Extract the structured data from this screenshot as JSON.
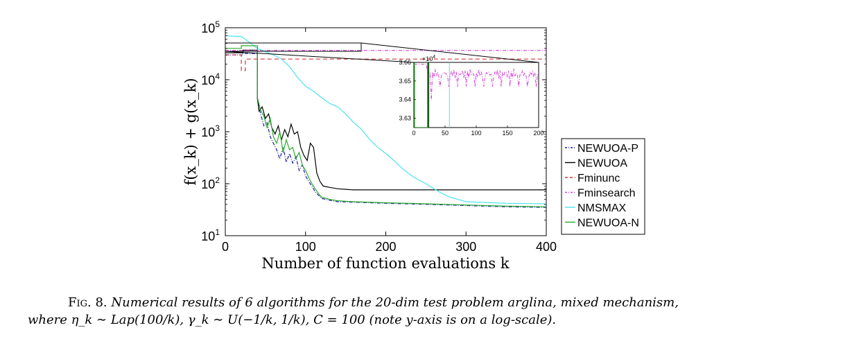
{
  "chart_data": {
    "type": "line",
    "xlabel": "Number of function evaluations k",
    "ylabel": "f(x_k) + g(x_k)",
    "y_scale": "log",
    "xlim": [
      0,
      400
    ],
    "ylim": [
      10,
      100000
    ],
    "x_ticks": [
      "0",
      "100",
      "200",
      "300",
      "400"
    ],
    "y_tick_values": [
      10,
      100,
      1000,
      10000,
      100000
    ],
    "y_ticks": [
      {
        "base": "10",
        "exp": "1"
      },
      {
        "base": "10",
        "exp": "2"
      },
      {
        "base": "10",
        "exp": "3"
      },
      {
        "base": "10",
        "exp": "4"
      },
      {
        "base": "10",
        "exp": "5"
      }
    ],
    "legend_position": "outside-right",
    "series": [
      {
        "name": "NEWUOA-P",
        "color": "#1a1aa8",
        "dash": "dashdot",
        "x": [
          0,
          22,
          22,
          40,
          40,
          44,
          48,
          52,
          56,
          60,
          64,
          68,
          72,
          76,
          80,
          84,
          88,
          92,
          96,
          100,
          104,
          108,
          112,
          116,
          120,
          130,
          140,
          160,
          200,
          250,
          300,
          350,
          400
        ],
        "y": [
          30000,
          30000,
          32000,
          32000,
          4000,
          2200,
          1300,
          1500,
          800,
          600,
          450,
          300,
          500,
          260,
          380,
          250,
          330,
          180,
          230,
          140,
          110,
          90,
          70,
          60,
          52,
          48,
          45,
          44,
          42,
          40,
          38,
          36,
          35
        ]
      },
      {
        "name": "NEWUOA",
        "color": "#000000",
        "dash": "solid",
        "x": [
          0,
          22,
          22,
          40,
          40,
          42,
          46,
          50,
          54,
          58,
          62,
          66,
          70,
          74,
          78,
          82,
          86,
          90,
          94,
          98,
          102,
          106,
          110,
          114,
          118,
          122,
          130,
          140,
          150,
          160,
          200,
          300,
          400
        ],
        "y": [
          33000,
          33000,
          37000,
          37000,
          4500,
          2500,
          3000,
          1800,
          2200,
          1200,
          900,
          1300,
          700,
          1100,
          800,
          1400,
          900,
          1000,
          500,
          350,
          280,
          600,
          500,
          160,
          110,
          90,
          85,
          80,
          78,
          76,
          76,
          76,
          76
        ]
      },
      {
        "name": "Fminunc",
        "color": "#d1323f",
        "dash": "dashed",
        "x": [
          0,
          20,
          20,
          25,
          25,
          400
        ],
        "y": [
          30000,
          30000,
          15000,
          15000,
          25000,
          25000
        ]
      },
      {
        "name": "Fminsearch",
        "color": "#d43fd4",
        "dash": "dashdot",
        "x": [
          0,
          400
        ],
        "y": [
          36500,
          36500
        ]
      },
      {
        "name": "NMSMAX",
        "color": "#4be3ec",
        "dash": "solid",
        "x": [
          0,
          20,
          40,
          60,
          70,
          80,
          90,
          100,
          110,
          120,
          130,
          140,
          150,
          160,
          170,
          180,
          190,
          200,
          210,
          220,
          230,
          240,
          250,
          260,
          270,
          280,
          290,
          300,
          350,
          400
        ],
        "y": [
          70000,
          68000,
          40000,
          30000,
          25000,
          18000,
          11000,
          7500,
          6000,
          4500,
          3500,
          3000,
          2200,
          1500,
          1100,
          700,
          500,
          380,
          280,
          200,
          150,
          120,
          100,
          80,
          65,
          55,
          50,
          45,
          42,
          41
        ]
      },
      {
        "name": "NEWUOA-N",
        "color": "#2aaa2a",
        "dash": "solid",
        "x": [
          0,
          20,
          20,
          40,
          40,
          44,
          48,
          52,
          56,
          60,
          64,
          68,
          72,
          76,
          80,
          84,
          88,
          92,
          96,
          100,
          104,
          108,
          112,
          116,
          120,
          130,
          140,
          160,
          200,
          250,
          300,
          350,
          400
        ],
        "y": [
          40000,
          40000,
          45000,
          45000,
          4500,
          2600,
          2000,
          1200,
          1800,
          800,
          600,
          1000,
          400,
          700,
          450,
          500,
          300,
          400,
          230,
          180,
          130,
          100,
          80,
          65,
          55,
          50,
          47,
          45,
          43,
          41,
          39,
          37,
          36
        ]
      }
    ],
    "inset": {
      "xlim": [
        0,
        200
      ],
      "ylim": [
        36250,
        36600
      ],
      "x_ticks": [
        "0",
        "50",
        "100",
        "150",
        "200"
      ],
      "y_tick_values": [
        36300,
        36400,
        36500,
        36600
      ],
      "y_ticks": [
        "3.63",
        "3.64",
        "3.65",
        "3.66"
      ],
      "y_multiplier_base": "10",
      "y_multiplier_exp": "4"
    }
  },
  "caption": {
    "fig_label": "Fig. 8.",
    "line1": "Numerical results of 6 algorithms for the 20-dim test problem arglina, mixed mechanism,",
    "line2": "where η_k ∼ Lap(100/k), γ_k ∼ U(−1/k, 1/k), C = 100 (note y-axis is on a log-scale)."
  }
}
